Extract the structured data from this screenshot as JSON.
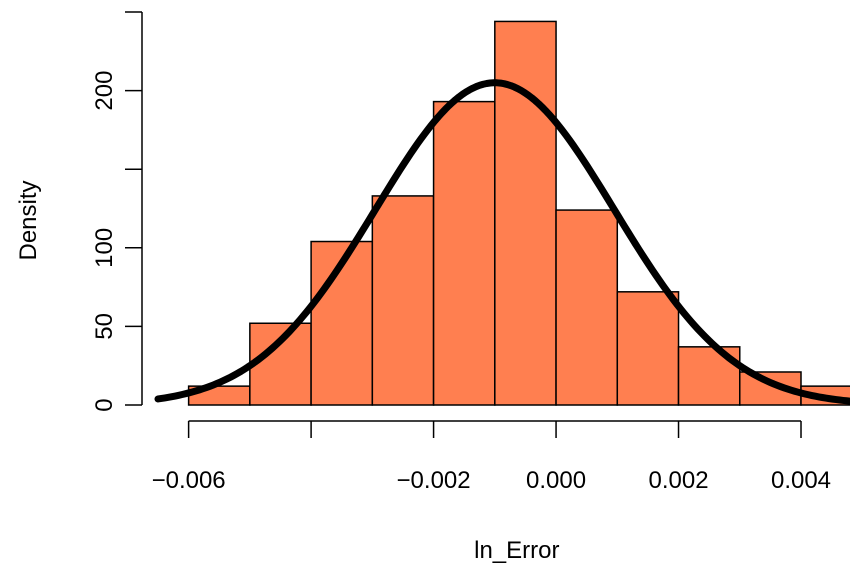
{
  "chart_data": {
    "type": "bar",
    "subtype": "histogram-with-density-curve",
    "title": "",
    "xlabel": "ln_Error",
    "ylabel": "Density",
    "xlim": [
      -0.0065,
      0.0048
    ],
    "ylim": [
      0,
      245
    ],
    "bin_edges": [
      -0.006,
      -0.005,
      -0.004,
      -0.003,
      -0.002,
      -0.001,
      0.0,
      0.001,
      0.002,
      0.003,
      0.004,
      0.005
    ],
    "values": [
      12,
      52,
      104,
      133,
      193,
      244,
      124,
      72,
      37,
      21,
      12
    ],
    "x_ticks": [
      -0.006,
      -0.004,
      -0.002,
      0.0,
      0.002,
      0.004
    ],
    "x_tick_labels": [
      "−0.006",
      "",
      "−0.002",
      "0.000",
      "0.002",
      "0.004"
    ],
    "y_ticks": [
      0,
      50,
      100,
      150,
      200,
      250
    ],
    "y_tick_labels": [
      "0",
      "50",
      "100",
      "",
      "200",
      ""
    ],
    "curve": {
      "type": "normal-density",
      "mean": -0.001,
      "sd": 0.00195,
      "peak": 205
    },
    "colors": {
      "bar_fill": "#FF7F50",
      "bar_stroke": "#000000",
      "curve": "#000000"
    },
    "grid": false,
    "legend": "none"
  }
}
